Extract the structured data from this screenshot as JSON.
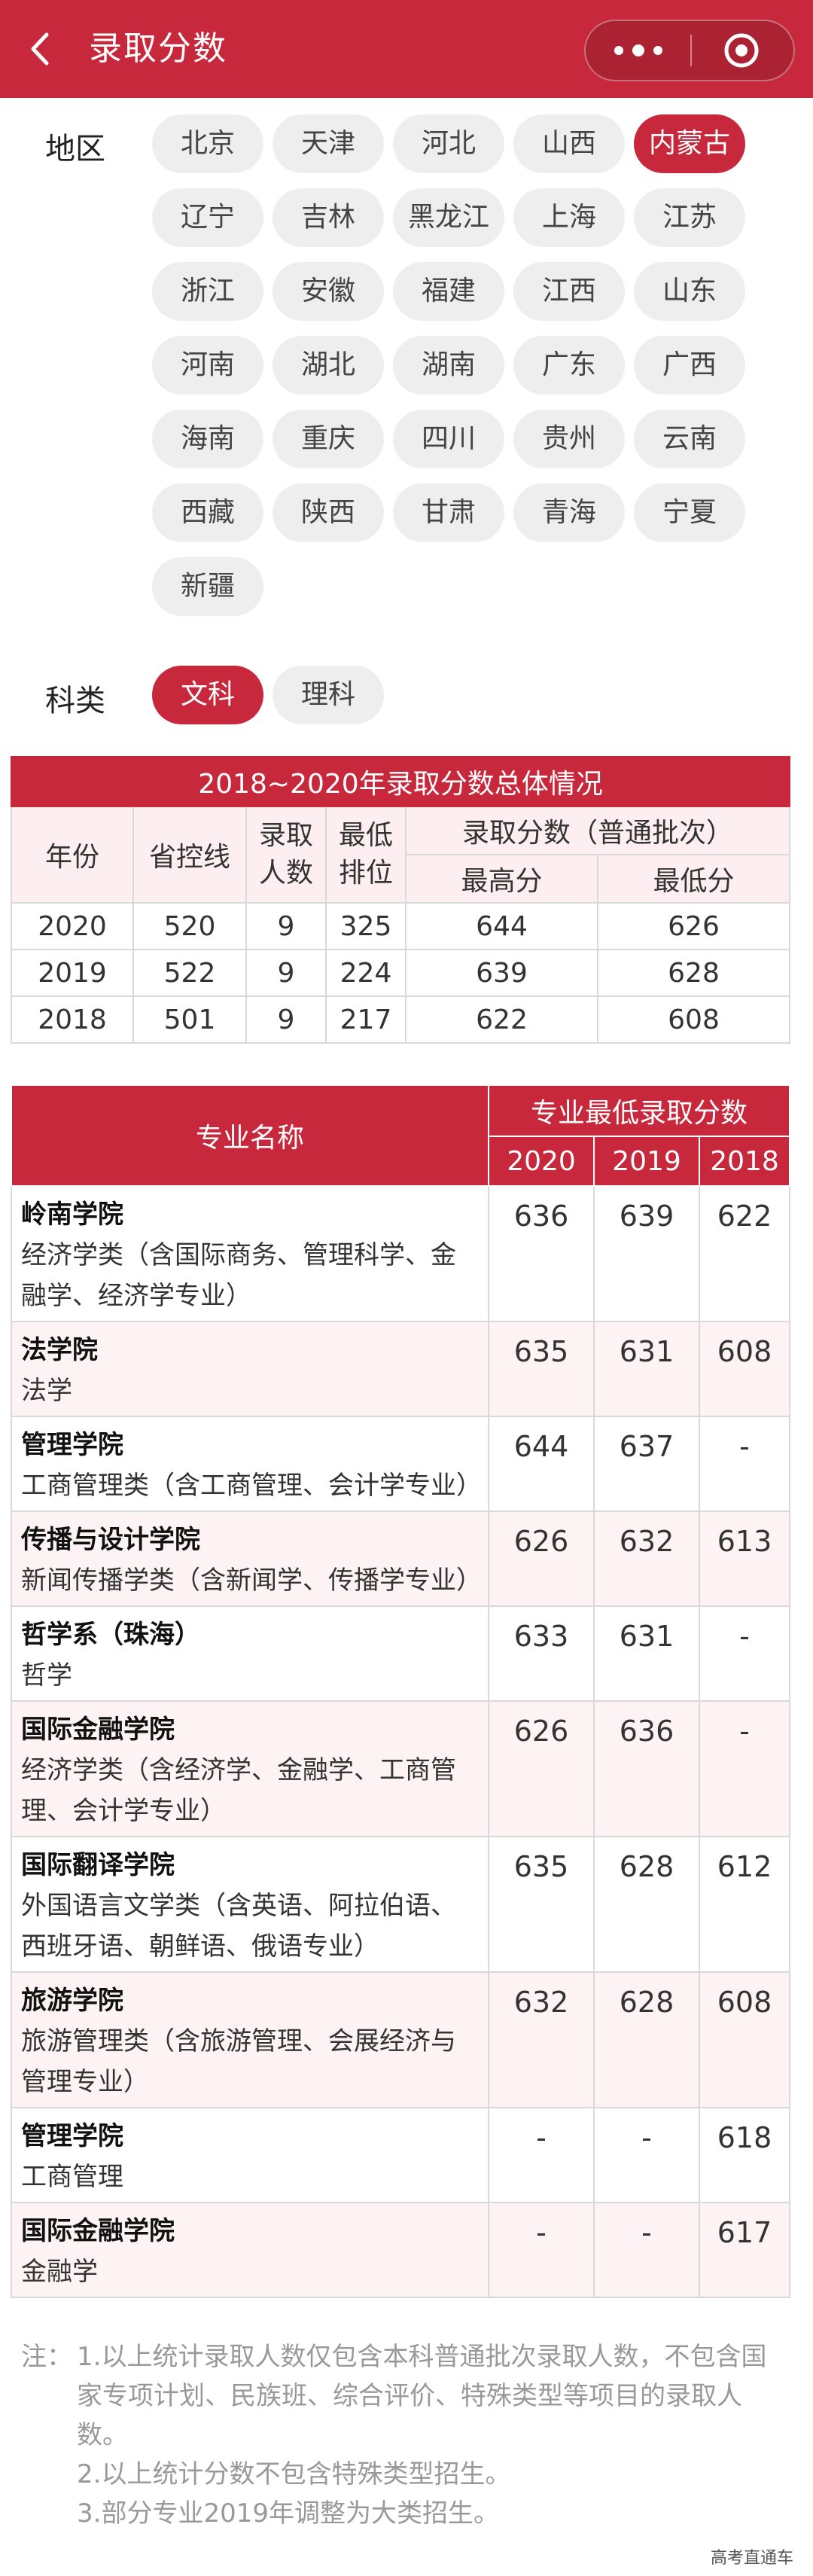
{
  "header": {
    "title": "录取分数"
  },
  "region": {
    "label": "地区",
    "items": [
      "北京",
      "天津",
      "河北",
      "山西",
      "内蒙古",
      "辽宁",
      "吉林",
      "黑龙江",
      "上海",
      "江苏",
      "浙江",
      "安徽",
      "福建",
      "江西",
      "山东",
      "河南",
      "湖北",
      "湖南",
      "广东",
      "广西",
      "海南",
      "重庆",
      "四川",
      "贵州",
      "云南",
      "西藏",
      "陕西",
      "甘肃",
      "青海",
      "宁夏",
      "新疆"
    ],
    "selected": "内蒙古"
  },
  "category": {
    "label": "科类",
    "items": [
      "文科",
      "理科"
    ],
    "selected": "文科"
  },
  "summary": {
    "title": "2018~2020年录取分数总体情况",
    "headers": {
      "year": "年份",
      "control": "省控线",
      "count": "录取人数",
      "rank": "最低排位",
      "score_group": "录取分数（普通批次）",
      "max": "最高分",
      "min": "最低分"
    },
    "rows": [
      {
        "year": "2020",
        "control": "520",
        "count": "9",
        "rank": "325",
        "max": "644",
        "min": "626"
      },
      {
        "year": "2019",
        "control": "522",
        "count": "9",
        "rank": "224",
        "max": "639",
        "min": "628"
      },
      {
        "year": "2018",
        "control": "501",
        "count": "9",
        "rank": "217",
        "max": "622",
        "min": "608"
      }
    ]
  },
  "majors": {
    "headers": {
      "name": "专业名称",
      "group": "专业最低录取分数",
      "y2020": "2020",
      "y2019": "2019",
      "y2018": "2018"
    },
    "rows": [
      {
        "college": "岭南学院",
        "major": "经济学类（含国际商务、管理科学、金融学、经济学专业）",
        "s2020": "636",
        "s2019": "639",
        "s2018": "622"
      },
      {
        "college": "法学院",
        "major": "法学",
        "s2020": "635",
        "s2019": "631",
        "s2018": "608"
      },
      {
        "college": "管理学院",
        "major": "工商管理类（含工商管理、会计学专业）",
        "s2020": "644",
        "s2019": "637",
        "s2018": "-"
      },
      {
        "college": "传播与设计学院",
        "major": "新闻传播学类（含新闻学、传播学专业）",
        "s2020": "626",
        "s2019": "632",
        "s2018": "613"
      },
      {
        "college": "哲学系（珠海）",
        "major": "哲学",
        "s2020": "633",
        "s2019": "631",
        "s2018": "-"
      },
      {
        "college": "国际金融学院",
        "major": "经济学类（含经济学、金融学、工商管理、会计学专业）",
        "s2020": "626",
        "s2019": "636",
        "s2018": "-"
      },
      {
        "college": "国际翻译学院",
        "major": "外国语言文学类（含英语、阿拉伯语、西班牙语、朝鲜语、俄语专业）",
        "s2020": "635",
        "s2019": "628",
        "s2018": "612"
      },
      {
        "college": "旅游学院",
        "major": "旅游管理类（含旅游管理、会展经济与管理专业）",
        "s2020": "632",
        "s2019": "628",
        "s2018": "608"
      },
      {
        "college": "管理学院",
        "major": "工商管理",
        "s2020": "-",
        "s2019": "-",
        "s2018": "618"
      },
      {
        "college": "国际金融学院",
        "major": "金融学",
        "s2020": "-",
        "s2019": "-",
        "s2018": "617"
      }
    ]
  },
  "notes": {
    "prefix": "注：",
    "items": [
      "1.以上统计录取人数仅包含本科普通批次录取人数，不包含国家专项计划、民族班、综合评价、特殊类型等项目的录取人数。",
      "2.以上统计分数不包含特殊类型招生。",
      "3.部分专业2019年调整为大类招生。"
    ]
  },
  "watermark": "高考直通车",
  "colors": {
    "accent": "#c8283b",
    "chip_bg": "#eeeeee",
    "row_alt": "#fdf3f4"
  }
}
